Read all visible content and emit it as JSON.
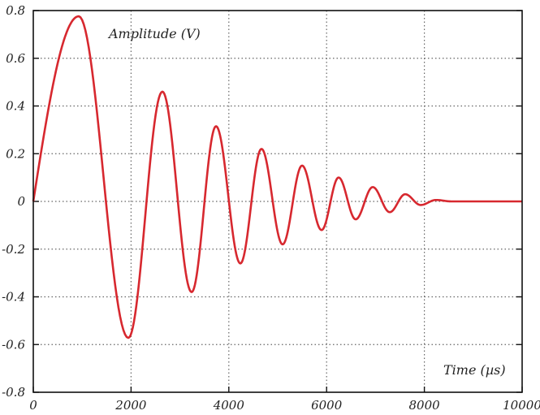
{
  "chart_data": {
    "type": "line",
    "title": "",
    "xlabel": "Time (µs)",
    "ylabel": "Amplitude (V)",
    "xlim": [
      0,
      10000
    ],
    "ylim": [
      -0.8,
      0.8
    ],
    "xticks": [
      0,
      2000,
      4000,
      6000,
      8000,
      10000
    ],
    "yticks": [
      0.8,
      0.6,
      0.4,
      0.2,
      0,
      -0.2,
      -0.4,
      -0.6,
      -0.8
    ],
    "ytick_labels": [
      "0.8",
      "0.6",
      "0.4",
      "0.2",
      "0",
      "-0.2",
      "-0.4",
      "-0.6",
      "-0.8"
    ],
    "grid": true,
    "line_color": "#d7282f",
    "series": [
      {
        "x": [
          0,
          930,
          1944,
          2641,
          3239,
          3738,
          4236,
          4668,
          5100,
          5498,
          5897,
          6246,
          6595,
          6944,
          7292,
          7608,
          7924,
          8239,
          8550,
          10000
        ],
        "y": [
          0,
          0.776,
          -0.572,
          0.46,
          -0.38,
          0.315,
          -0.26,
          0.22,
          -0.18,
          0.15,
          -0.12,
          0.1,
          -0.075,
          0.06,
          -0.045,
          0.03,
          -0.015,
          0.006,
          0,
          0
        ]
      }
    ]
  }
}
